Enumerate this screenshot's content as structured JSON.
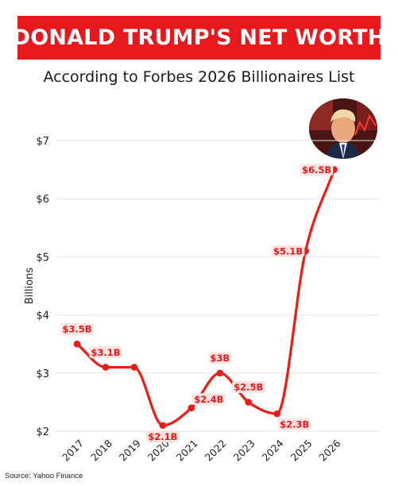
{
  "header": {
    "title": "DONALD TRUMP'S NET WORTH",
    "subtitle": "According to Forbes 2026 Billionaires List"
  },
  "source_note": "Source: Yahoo Finance",
  "colors": {
    "accent": "#e8191c",
    "line": "#ee1c14",
    "label_bg": "#fde3df",
    "label_text": "#e8191c",
    "grid": "#e6e6e6"
  },
  "chart_data": {
    "type": "line",
    "title": "DONALD TRUMP'S NET WORTH",
    "subtitle": "According to Forbes 2026 Billionaires List",
    "xlabel": "",
    "ylabel": "Billions",
    "x": [
      "2017",
      "2018",
      "2019",
      "2020",
      "2021",
      "2022",
      "2023",
      "2024",
      "2025",
      "2026"
    ],
    "series": [
      {
        "values": [
          3.5,
          3.1,
          3.1,
          2.1,
          2.4,
          3.0,
          2.5,
          2.3,
          5.1,
          6.5
        ],
        "labels": [
          "$3.5B",
          "$3.1B",
          "",
          "$2.1B",
          "$2.4B",
          "$3B",
          "$2.5B",
          "$2.3B",
          "$5.1B",
          "$6.5B"
        ]
      }
    ],
    "ylim": [
      2,
      7
    ],
    "yticks": [
      2,
      3,
      4,
      5,
      6,
      7
    ],
    "ytick_labels": [
      "$2",
      "$3",
      "$4",
      "$5",
      "$6",
      "$7"
    ],
    "grid": "horizontal",
    "smooth": true
  }
}
